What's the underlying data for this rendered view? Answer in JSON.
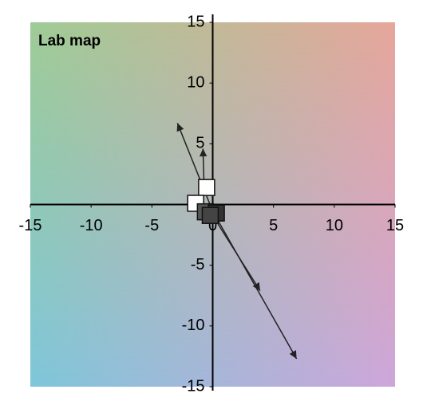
{
  "chart_data": {
    "type": "vector-scatter",
    "title": "Lab map",
    "xlim": [
      -15,
      15
    ],
    "ylim": [
      -15,
      15
    ],
    "xticks": [
      -15,
      -10,
      -5,
      0,
      5,
      10,
      15
    ],
    "yticks": [
      -15,
      -10,
      -5,
      0,
      5,
      10,
      15
    ],
    "arrows": [
      {
        "x": [
          0.2,
          6.9
        ],
        "y": [
          -0.9,
          -12.7
        ]
      },
      {
        "x": [
          -0.2,
          3.9
        ],
        "y": [
          -0.6,
          -7.1
        ]
      },
      {
        "x": [
          -0.1,
          -2.9
        ],
        "y": [
          -0.3,
          6.7
        ]
      },
      {
        "x": [
          -0.7,
          -0.8
        ],
        "y": [
          1.2,
          4.6
        ]
      },
      {
        "x": [
          -0.4,
          -0.6
        ],
        "y": [
          1.0,
          1.6
        ]
      }
    ],
    "points": {
      "x": [
        -0.5,
        -1.4,
        -0.6,
        0.3,
        -0.2
      ],
      "y": [
        1.4,
        0.1,
        -0.6,
        -0.7,
        -0.9
      ],
      "colors": [
        "#ffffff",
        "#ffffff",
        "#555555",
        "#333333",
        "#444444"
      ]
    },
    "arrow_color": "#222222"
  }
}
